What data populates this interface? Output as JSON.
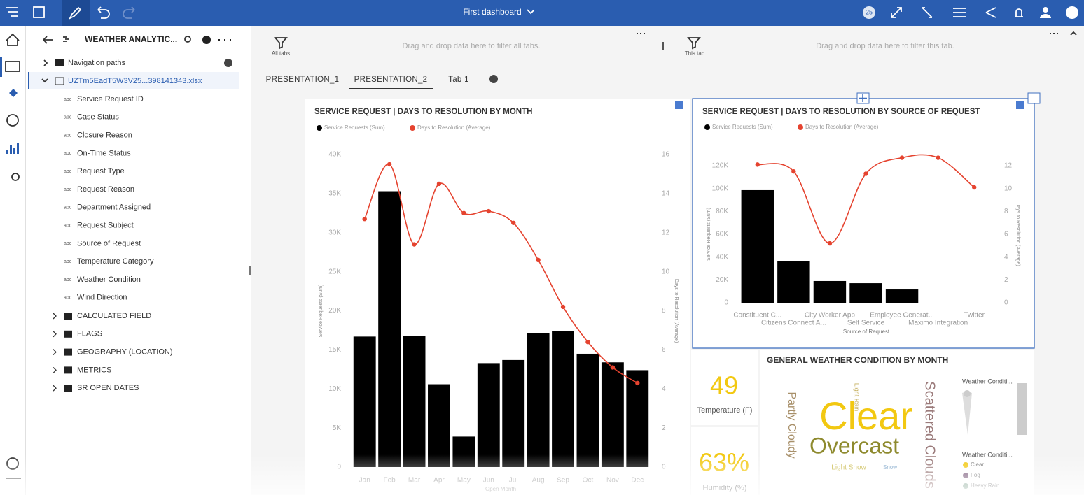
{
  "topbar": {
    "title": "First dashboard",
    "badge": "25"
  },
  "sidebar": {
    "title": "WEATHER ANALYTIC...",
    "nav_paths": "Navigation paths",
    "file": "UZTm5EadT5W3V25...398141343.xlsx",
    "field_icon": "abc",
    "fields": [
      "Service Request ID",
      "Case Status",
      "Closure Reason",
      "On-Time Status",
      "Request Type",
      "Request Reason",
      "Department Assigned",
      "Request Subject",
      "Source of Request",
      "Temperature Category",
      "Weather Condition",
      "Wind Direction"
    ],
    "folders": [
      "CALCULATED FIELD",
      "FLAGS",
      "GEOGRAPHY (LOCATION)",
      "METRICS",
      "SR OPEN DATES"
    ]
  },
  "filters": {
    "all_label": "All tabs",
    "all_hint": "Drag and drop data here to filter all tabs.",
    "tab_label": "This tab",
    "tab_hint": "Drag and drop data here to filter this tab."
  },
  "tabs": [
    "PRESENTATION_1",
    "PRESENTATION_2",
    "Tab 1"
  ],
  "charts": [
    {
      "type": "combo",
      "title": "SERVICE REQUEST | DAYS TO RESOLUTION BY MONTH",
      "xlabel": "Open Month",
      "ylabel": "Service Requests (Sum)",
      "y2label": "Days to Resolution (Average)",
      "categories": [
        "Jan",
        "Feb",
        "Mar",
        "Apr",
        "May",
        "Jun",
        "Jul",
        "Aug",
        "Sep",
        "Oct",
        "Nov",
        "Dec"
      ],
      "series": [
        {
          "name": "Service Requests (Sum)",
          "type": "bar",
          "color": "#000000",
          "values": [
            16700,
            35300,
            16800,
            10600,
            3900,
            13300,
            13700,
            17100,
            17400,
            14500,
            13400,
            12400
          ]
        },
        {
          "name": "Days to Resolution (Average)",
          "type": "line",
          "axis": "y2",
          "color": "#e5432f",
          "values": [
            12.7,
            15.5,
            11.4,
            14.5,
            13.0,
            13.1,
            12.5,
            10.6,
            8.2,
            6.4,
            5.1,
            4.3
          ]
        }
      ],
      "ylim": [
        0,
        40000
      ],
      "yticks": [
        0,
        {
          "value": 5000,
          "label": "5K"
        },
        {
          "value": 10000,
          "label": "10K"
        },
        {
          "value": 15000,
          "label": "15K"
        },
        {
          "value": 20000,
          "label": "20K"
        },
        {
          "value": 25000,
          "label": "25K"
        },
        {
          "value": 30000,
          "label": "30K"
        },
        {
          "value": 35000,
          "label": "35K"
        },
        {
          "value": 40000,
          "label": "40K"
        }
      ],
      "y2lim": [
        0,
        16
      ],
      "y2ticks": [
        0,
        2,
        4,
        6,
        8,
        10,
        12,
        14,
        16
      ]
    },
    {
      "type": "combo",
      "title": "SERVICE REQUEST | DAYS TO RESOLUTION BY SOURCE OF REQUEST",
      "xlabel": "Source of Request",
      "ylabel": "Service Requests (Sum)",
      "y2label": "Days to Resolution (Average)",
      "categories": [
        "Constituent C...",
        "Citizens Connect A...",
        "City Worker App",
        "Self Service",
        "Employee Generat...",
        "Maximo Integration",
        "Twitter"
      ],
      "series": [
        {
          "name": "Service Requests (Sum)",
          "type": "bar",
          "color": "#000000",
          "values": [
            98600,
            36700,
            19000,
            17100,
            11600,
            0,
            0
          ]
        },
        {
          "name": "Days to Resolution (Average)",
          "type": "line",
          "axis": "y2",
          "color": "#e5432f",
          "values": [
            12.1,
            11.5,
            5.2,
            11.3,
            12.7,
            12.7,
            10.1
          ]
        }
      ],
      "ylim": [
        0,
        120000
      ],
      "yticks": [
        0,
        {
          "value": 20000,
          "label": "20K"
        },
        {
          "value": 40000,
          "label": "40K"
        },
        {
          "value": 60000,
          "label": "60K"
        },
        {
          "value": 80000,
          "label": "80K"
        },
        {
          "value": 100000,
          "label": "100K"
        },
        {
          "value": 120000,
          "label": "120K"
        }
      ],
      "y2lim": [
        0,
        12
      ],
      "y2ticks": [
        0,
        2,
        4,
        6,
        8,
        10,
        12
      ]
    }
  ],
  "kpis": [
    {
      "value": 49,
      "label": "Temperature (F)"
    },
    {
      "value": 63,
      "value_label": "63%",
      "label": "Humidity (%)"
    }
  ],
  "wordcloud": {
    "title": "GENERAL WEATHER CONDITION BY MONTH",
    "words": [
      {
        "text": "Clear",
        "color": "#f2c811"
      },
      {
        "text": "Overcast",
        "color": "#8e8a2e"
      },
      {
        "text": "Partly Cloudy",
        "color": "#a8906a"
      },
      {
        "text": "Scattered Clouds",
        "color": "#9b7b7b"
      },
      {
        "text": "Light Snow",
        "color": "#c9b94a"
      },
      {
        "text": "Light Rain",
        "color": "#c6b060"
      },
      {
        "text": "Snow",
        "color": "#7aa3c8"
      }
    ],
    "legend_titles": [
      "Weather Conditi...",
      "Weather Conditi..."
    ],
    "legend": [
      {
        "name": "Clear",
        "color": "#f2c811"
      },
      {
        "name": "Fog",
        "color": "#7b5a7b"
      },
      {
        "name": "Heavy Rain",
        "color": "#8aa898"
      }
    ]
  }
}
